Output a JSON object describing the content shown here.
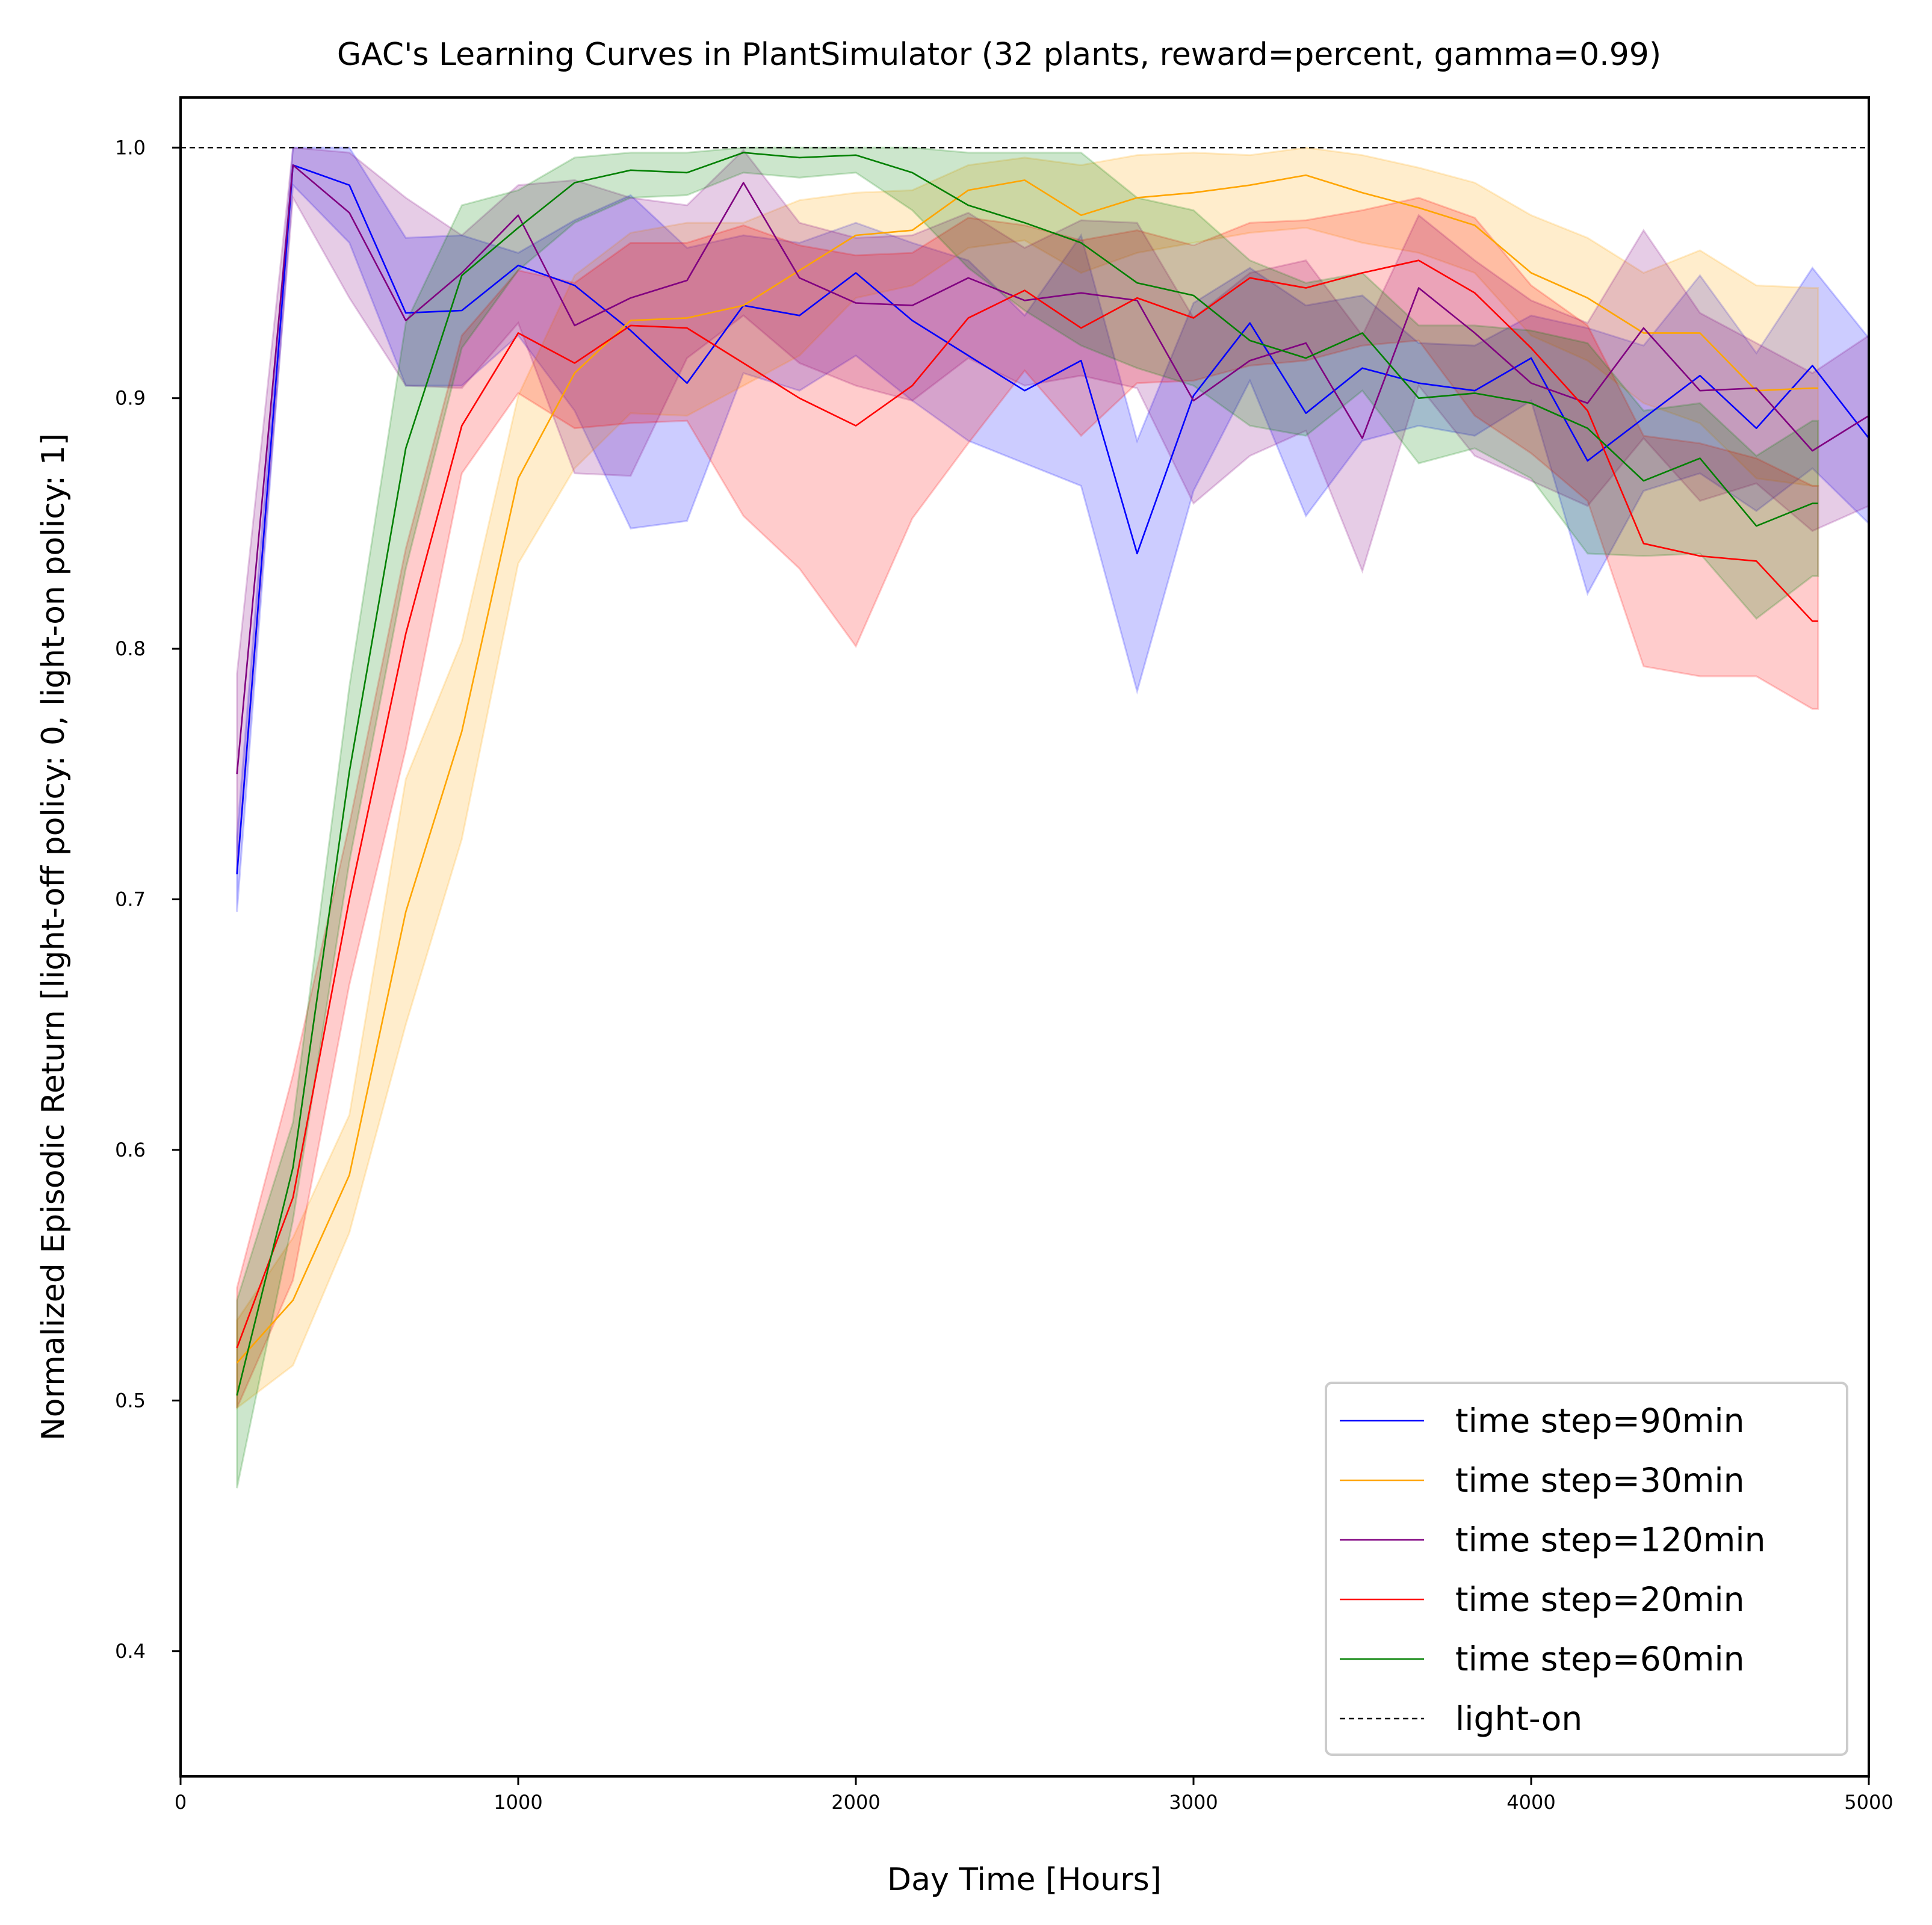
{
  "colors": {
    "blue": "#0000ff",
    "orange": "#ffa500",
    "purple": "#800080",
    "red": "#ff0000",
    "green": "#008000",
    "reference": "#000000"
  },
  "chart_data": {
    "type": "line",
    "title": "GAC's Learning Curves in PlantSimulator (32 plants, reward=percent, gamma=0.99)",
    "xlabel": "Day Time [Hours]",
    "ylabel": "Normalized Episodic Return [light-off policy: 0, light-on policy: 1]",
    "xlim": [
      0,
      5000
    ],
    "ylim": [
      0.35,
      1.02
    ],
    "xticks": [
      0,
      1000,
      2000,
      3000,
      4000,
      5000
    ],
    "xtick_labels": [
      "0",
      "1000",
      "2000",
      "3000",
      "4000",
      "5000"
    ],
    "yticks": [
      0.4,
      0.5,
      0.6,
      0.7,
      0.8,
      0.9,
      1.0
    ],
    "ytick_labels": [
      "0.4",
      "0.5",
      "0.6",
      "0.7",
      "0.8",
      "0.9",
      "1.0"
    ],
    "grid": false,
    "legend_position": "lower-right",
    "reference_line": {
      "name": "light-on",
      "y": 1.0,
      "style": "dashed",
      "color": "#000000"
    },
    "series": [
      {
        "name": "time step=90min",
        "color": "#0000ff",
        "x": [
          167,
          333,
          500,
          667,
          833,
          1000,
          1167,
          1333,
          1500,
          1667,
          1833,
          2000,
          2167,
          2333,
          2500,
          2667,
          2833,
          3000,
          3167,
          3333,
          3500,
          3667,
          3833,
          4000,
          4167,
          4333,
          4500,
          4667,
          4833,
          5000
        ],
        "y": [
          0.71,
          0.993,
          0.985,
          0.934,
          0.935,
          0.953,
          0.945,
          0.927,
          0.906,
          0.937,
          0.933,
          0.95,
          0.931,
          0.917,
          0.903,
          0.915,
          0.838,
          0.901,
          0.93,
          0.894,
          0.912,
          0.906,
          0.903,
          0.916,
          0.875,
          0.892,
          0.909,
          0.888,
          0.913,
          0.884
        ],
        "lower": [
          0.695,
          0.985,
          0.962,
          0.905,
          0.905,
          0.925,
          0.895,
          0.848,
          0.851,
          0.91,
          0.903,
          0.917,
          0.899,
          0.883,
          0.874,
          0.865,
          0.783,
          0.863,
          0.907,
          0.853,
          0.883,
          0.889,
          0.885,
          0.899,
          0.822,
          0.863,
          0.87,
          0.855,
          0.872,
          0.85
        ],
        "upper": [
          0.725,
          1.0,
          1.0,
          0.964,
          0.965,
          0.958,
          0.971,
          0.981,
          0.96,
          0.965,
          0.962,
          0.97,
          0.962,
          0.955,
          0.933,
          0.965,
          0.883,
          0.938,
          0.952,
          0.937,
          0.941,
          0.922,
          0.921,
          0.933,
          0.928,
          0.921,
          0.949,
          0.918,
          0.952,
          0.924
        ]
      },
      {
        "name": "time step=30min",
        "color": "#ffa500",
        "x": [
          167,
          333,
          500,
          667,
          833,
          1000,
          1167,
          1333,
          1500,
          1667,
          1833,
          2000,
          2167,
          2333,
          2500,
          2667,
          2833,
          3000,
          3167,
          3333,
          3500,
          3667,
          3833,
          4000,
          4167,
          4333,
          4500,
          4667,
          4833,
          4850
        ],
        "y": [
          0.515,
          0.54,
          0.59,
          0.695,
          0.767,
          0.868,
          0.91,
          0.931,
          0.932,
          0.937,
          0.951,
          0.965,
          0.967,
          0.983,
          0.987,
          0.973,
          0.98,
          0.982,
          0.985,
          0.989,
          0.982,
          0.976,
          0.969,
          0.95,
          0.94,
          0.926,
          0.926,
          0.903,
          0.904,
          0.904
        ],
        "lower": [
          0.497,
          0.514,
          0.567,
          0.65,
          0.724,
          0.834,
          0.872,
          0.894,
          0.893,
          0.905,
          0.917,
          0.94,
          0.945,
          0.96,
          0.963,
          0.95,
          0.958,
          0.962,
          0.966,
          0.968,
          0.962,
          0.958,
          0.95,
          0.925,
          0.915,
          0.898,
          0.89,
          0.868,
          0.865,
          0.865
        ],
        "upper": [
          0.532,
          0.565,
          0.614,
          0.748,
          0.803,
          0.901,
          0.949,
          0.966,
          0.97,
          0.97,
          0.979,
          0.982,
          0.983,
          0.993,
          0.996,
          0.993,
          0.997,
          0.998,
          0.997,
          1.0,
          0.997,
          0.992,
          0.986,
          0.973,
          0.964,
          0.95,
          0.959,
          0.945,
          0.944,
          0.944
        ]
      },
      {
        "name": "time step=120min",
        "color": "#800080",
        "x": [
          167,
          333,
          500,
          667,
          833,
          1000,
          1167,
          1333,
          1500,
          1667,
          1833,
          2000,
          2167,
          2333,
          2500,
          2667,
          2833,
          3000,
          3167,
          3333,
          3500,
          3667,
          3833,
          4000,
          4167,
          4333,
          4500,
          4667,
          4833,
          5000
        ],
        "y": [
          0.75,
          0.993,
          0.974,
          0.931,
          0.95,
          0.973,
          0.929,
          0.94,
          0.947,
          0.986,
          0.948,
          0.938,
          0.937,
          0.948,
          0.939,
          0.942,
          0.939,
          0.899,
          0.915,
          0.922,
          0.884,
          0.944,
          0.926,
          0.906,
          0.898,
          0.928,
          0.903,
          0.904,
          0.879,
          0.893
        ],
        "lower": [
          0.71,
          0.98,
          0.94,
          0.905,
          0.904,
          0.93,
          0.87,
          0.869,
          0.916,
          0.933,
          0.914,
          0.905,
          0.899,
          0.916,
          0.905,
          0.909,
          0.904,
          0.858,
          0.877,
          0.887,
          0.831,
          0.905,
          0.877,
          0.867,
          0.857,
          0.884,
          0.859,
          0.866,
          0.847,
          0.857
        ],
        "upper": [
          0.79,
          1.0,
          0.998,
          0.98,
          0.965,
          0.985,
          0.987,
          0.98,
          0.977,
          0.999,
          0.97,
          0.964,
          0.965,
          0.974,
          0.96,
          0.971,
          0.97,
          0.932,
          0.95,
          0.955,
          0.925,
          0.973,
          0.955,
          0.939,
          0.93,
          0.967,
          0.934,
          0.922,
          0.91,
          0.925
        ]
      },
      {
        "name": "time step=20min",
        "color": "#ff0000",
        "x": [
          167,
          333,
          500,
          667,
          833,
          1000,
          1167,
          1333,
          1500,
          1667,
          1833,
          2000,
          2167,
          2333,
          2500,
          2667,
          2833,
          3000,
          3167,
          3333,
          3500,
          3667,
          3833,
          4000,
          4167,
          4333,
          4500,
          4667,
          4833,
          4850
        ],
        "y": [
          0.521,
          0.581,
          0.7,
          0.806,
          0.889,
          0.926,
          0.914,
          0.929,
          0.928,
          0.914,
          0.9,
          0.889,
          0.905,
          0.932,
          0.943,
          0.928,
          0.94,
          0.932,
          0.948,
          0.944,
          0.95,
          0.955,
          0.942,
          0.92,
          0.895,
          0.842,
          0.837,
          0.835,
          0.811,
          0.811
        ],
        "lower": [
          0.497,
          0.548,
          0.666,
          0.76,
          0.87,
          0.902,
          0.888,
          0.89,
          0.891,
          0.853,
          0.832,
          0.801,
          0.852,
          0.882,
          0.911,
          0.885,
          0.906,
          0.907,
          0.913,
          0.915,
          0.921,
          0.923,
          0.893,
          0.878,
          0.859,
          0.793,
          0.789,
          0.789,
          0.776,
          0.776
        ],
        "upper": [
          0.545,
          0.63,
          0.73,
          0.84,
          0.925,
          0.951,
          0.946,
          0.962,
          0.962,
          0.969,
          0.961,
          0.957,
          0.958,
          0.972,
          0.969,
          0.963,
          0.967,
          0.961,
          0.97,
          0.971,
          0.975,
          0.98,
          0.972,
          0.945,
          0.929,
          0.885,
          0.882,
          0.876,
          0.865,
          0.865
        ]
      },
      {
        "name": "time step=60min",
        "color": "#008000",
        "x": [
          167,
          333,
          500,
          667,
          833,
          1000,
          1167,
          1333,
          1500,
          1667,
          1833,
          2000,
          2167,
          2333,
          2500,
          2667,
          2833,
          3000,
          3167,
          3333,
          3500,
          3667,
          3833,
          4000,
          4167,
          4333,
          4500,
          4667,
          4833,
          4850
        ],
        "y": [
          0.502,
          0.593,
          0.751,
          0.88,
          0.949,
          0.968,
          0.986,
          0.991,
          0.99,
          0.998,
          0.996,
          0.997,
          0.99,
          0.977,
          0.97,
          0.962,
          0.946,
          0.941,
          0.923,
          0.916,
          0.926,
          0.9,
          0.902,
          0.898,
          0.888,
          0.867,
          0.876,
          0.849,
          0.858,
          0.858
        ],
        "lower": [
          0.465,
          0.572,
          0.715,
          0.832,
          0.92,
          0.951,
          0.97,
          0.98,
          0.981,
          0.99,
          0.988,
          0.99,
          0.975,
          0.952,
          0.935,
          0.921,
          0.912,
          0.905,
          0.889,
          0.885,
          0.903,
          0.874,
          0.88,
          0.868,
          0.838,
          0.837,
          0.838,
          0.812,
          0.829,
          0.829
        ],
        "upper": [
          0.54,
          0.611,
          0.785,
          0.93,
          0.977,
          0.983,
          0.996,
          0.998,
          0.998,
          1.0,
          1.0,
          1.0,
          1.0,
          0.998,
          0.998,
          0.998,
          0.98,
          0.975,
          0.955,
          0.946,
          0.95,
          0.929,
          0.929,
          0.927,
          0.922,
          0.895,
          0.898,
          0.877,
          0.891,
          0.891
        ]
      }
    ],
    "legend": [
      {
        "label": "time step=90min",
        "color": "#0000ff",
        "style": "solid"
      },
      {
        "label": "time step=30min",
        "color": "#ffa500",
        "style": "solid"
      },
      {
        "label": "time step=120min",
        "color": "#800080",
        "style": "solid"
      },
      {
        "label": "time step=20min",
        "color": "#ff0000",
        "style": "solid"
      },
      {
        "label": "time step=60min",
        "color": "#008000",
        "style": "solid"
      },
      {
        "label": "light-on",
        "color": "#000000",
        "style": "dashed"
      }
    ]
  }
}
